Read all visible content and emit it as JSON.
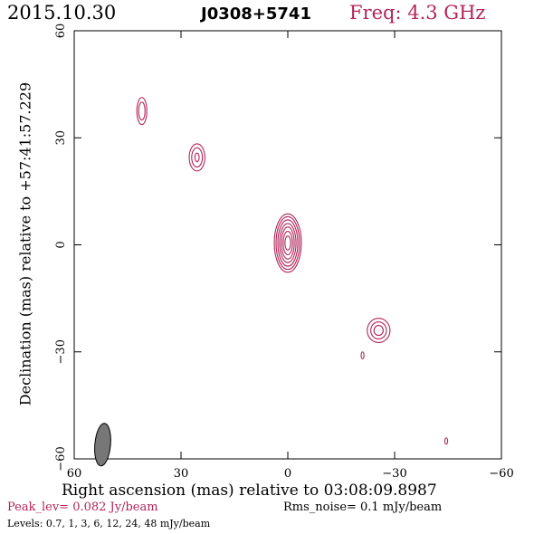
{
  "header": {
    "date": "2015.10.30",
    "source": "J0308+5741",
    "frequency": "Freq: 4.3 GHz"
  },
  "colors": {
    "contour": "#b3245a",
    "frame": "#000000",
    "beam": "#777777"
  },
  "chart_data": {
    "type": "contour",
    "xlabel": "Right ascension (mas) relative to 03:08:09.8987",
    "ylabel": "Declination (mas) relative to +57:41:57.229",
    "xlim": [
      60,
      -60
    ],
    "ylim": [
      -60,
      60
    ],
    "x_ticks": [
      60,
      30,
      0,
      -30,
      -60
    ],
    "y_ticks": [
      60,
      30,
      0,
      -30,
      -60
    ],
    "x_tick_labels": [
      "60",
      "30",
      "0",
      "−30",
      "−60"
    ],
    "y_tick_labels": [
      "60",
      "30",
      "0",
      "−30",
      "−60"
    ],
    "peak_level": "Peak_lev=  0.082 Jy/beam",
    "rms_noise": "Rms_noise=   0.1 mJy/beam",
    "levels_text": "Levels: 0.7,    1,    3,    6,   12,   24,   48 mJy/beam",
    "levels_mjy": [
      0.7,
      1,
      3,
      6,
      12,
      24,
      48
    ],
    "components": [
      {
        "x": 0,
        "y": 0.5,
        "rx": [
          3.8,
          3.3,
          2.8,
          2.3,
          1.8,
          1.3,
          0.8
        ],
        "ry": [
          8.2,
          7.4,
          6.5,
          5.5,
          4.5,
          3.3,
          2.0
        ]
      },
      {
        "x": 41,
        "y": 37.5,
        "rx": [
          1.4,
          0.9
        ],
        "ry": [
          3.8,
          2.5
        ]
      },
      {
        "x": 25.5,
        "y": 24.5,
        "rx": [
          2.2,
          1.5,
          0.6
        ],
        "ry": [
          3.8,
          2.7,
          1.2
        ]
      },
      {
        "x": -25.5,
        "y": -24,
        "rx": [
          3.2,
          2.2,
          1.3
        ],
        "ry": [
          3.4,
          2.4,
          1.4
        ]
      },
      {
        "x": -21,
        "y": -31,
        "rx": [
          0.4
        ],
        "ry": [
          1.0
        ]
      },
      {
        "x": -44.5,
        "y": -55,
        "rx": [
          0.4
        ],
        "ry": [
          0.9
        ]
      }
    ],
    "beam": {
      "x": 52,
      "y": -56,
      "major": 6,
      "minor": 2.2,
      "pa_deg": 5
    }
  }
}
